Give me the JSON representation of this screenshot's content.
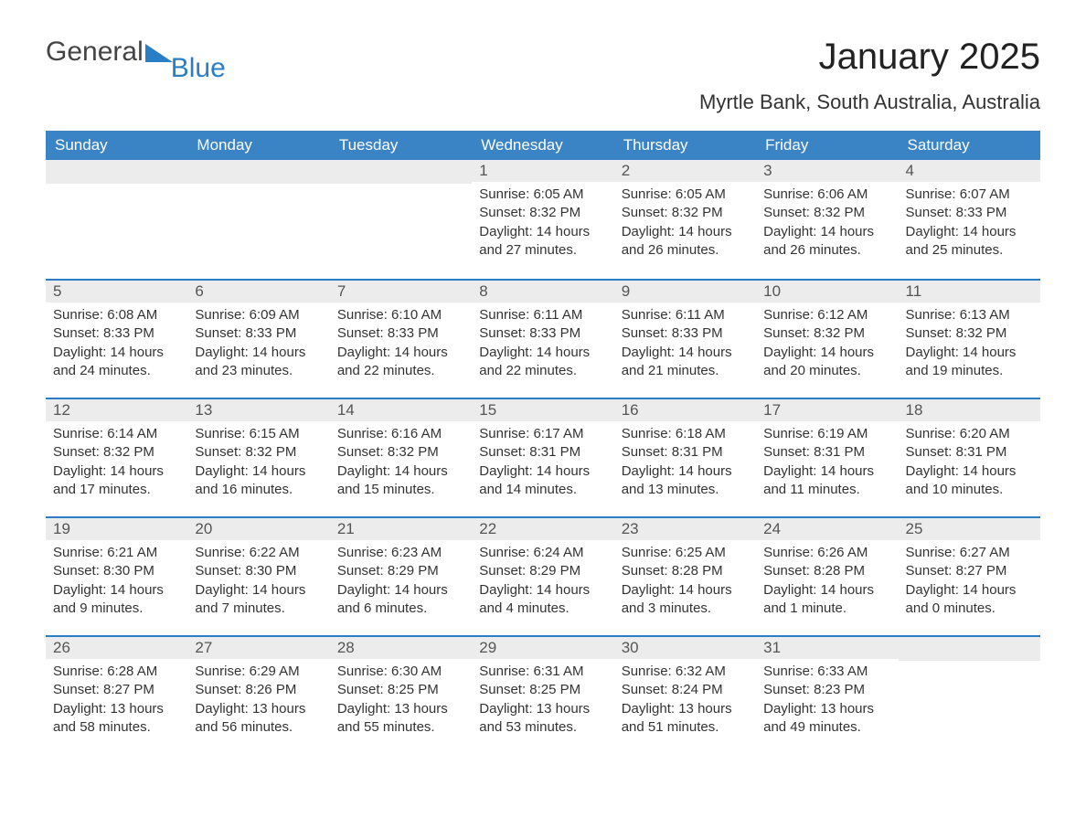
{
  "logo": {
    "word1": "General",
    "word2": "Blue",
    "mark_color": "#2a7ec6",
    "text_color_1": "#444444"
  },
  "title": "January 2025",
  "location": "Myrtle Bank, South Australia, Australia",
  "colors": {
    "header_bg": "#3a83c5",
    "header_text": "#ffffff",
    "daynum_bg": "#ececec",
    "week_divider": "#2a7ec6",
    "body_text": "#333333",
    "page_bg": "#ffffff"
  },
  "day_headers": [
    "Sunday",
    "Monday",
    "Tuesday",
    "Wednesday",
    "Thursday",
    "Friday",
    "Saturday"
  ],
  "weeks": [
    [
      null,
      null,
      null,
      {
        "n": "1",
        "sunrise": "Sunrise: 6:05 AM",
        "sunset": "Sunset: 8:32 PM",
        "dl1": "Daylight: 14 hours",
        "dl2": "and 27 minutes."
      },
      {
        "n": "2",
        "sunrise": "Sunrise: 6:05 AM",
        "sunset": "Sunset: 8:32 PM",
        "dl1": "Daylight: 14 hours",
        "dl2": "and 26 minutes."
      },
      {
        "n": "3",
        "sunrise": "Sunrise: 6:06 AM",
        "sunset": "Sunset: 8:32 PM",
        "dl1": "Daylight: 14 hours",
        "dl2": "and 26 minutes."
      },
      {
        "n": "4",
        "sunrise": "Sunrise: 6:07 AM",
        "sunset": "Sunset: 8:33 PM",
        "dl1": "Daylight: 14 hours",
        "dl2": "and 25 minutes."
      }
    ],
    [
      {
        "n": "5",
        "sunrise": "Sunrise: 6:08 AM",
        "sunset": "Sunset: 8:33 PM",
        "dl1": "Daylight: 14 hours",
        "dl2": "and 24 minutes."
      },
      {
        "n": "6",
        "sunrise": "Sunrise: 6:09 AM",
        "sunset": "Sunset: 8:33 PM",
        "dl1": "Daylight: 14 hours",
        "dl2": "and 23 minutes."
      },
      {
        "n": "7",
        "sunrise": "Sunrise: 6:10 AM",
        "sunset": "Sunset: 8:33 PM",
        "dl1": "Daylight: 14 hours",
        "dl2": "and 22 minutes."
      },
      {
        "n": "8",
        "sunrise": "Sunrise: 6:11 AM",
        "sunset": "Sunset: 8:33 PM",
        "dl1": "Daylight: 14 hours",
        "dl2": "and 22 minutes."
      },
      {
        "n": "9",
        "sunrise": "Sunrise: 6:11 AM",
        "sunset": "Sunset: 8:33 PM",
        "dl1": "Daylight: 14 hours",
        "dl2": "and 21 minutes."
      },
      {
        "n": "10",
        "sunrise": "Sunrise: 6:12 AM",
        "sunset": "Sunset: 8:32 PM",
        "dl1": "Daylight: 14 hours",
        "dl2": "and 20 minutes."
      },
      {
        "n": "11",
        "sunrise": "Sunrise: 6:13 AM",
        "sunset": "Sunset: 8:32 PM",
        "dl1": "Daylight: 14 hours",
        "dl2": "and 19 minutes."
      }
    ],
    [
      {
        "n": "12",
        "sunrise": "Sunrise: 6:14 AM",
        "sunset": "Sunset: 8:32 PM",
        "dl1": "Daylight: 14 hours",
        "dl2": "and 17 minutes."
      },
      {
        "n": "13",
        "sunrise": "Sunrise: 6:15 AM",
        "sunset": "Sunset: 8:32 PM",
        "dl1": "Daylight: 14 hours",
        "dl2": "and 16 minutes."
      },
      {
        "n": "14",
        "sunrise": "Sunrise: 6:16 AM",
        "sunset": "Sunset: 8:32 PM",
        "dl1": "Daylight: 14 hours",
        "dl2": "and 15 minutes."
      },
      {
        "n": "15",
        "sunrise": "Sunrise: 6:17 AM",
        "sunset": "Sunset: 8:31 PM",
        "dl1": "Daylight: 14 hours",
        "dl2": "and 14 minutes."
      },
      {
        "n": "16",
        "sunrise": "Sunrise: 6:18 AM",
        "sunset": "Sunset: 8:31 PM",
        "dl1": "Daylight: 14 hours",
        "dl2": "and 13 minutes."
      },
      {
        "n": "17",
        "sunrise": "Sunrise: 6:19 AM",
        "sunset": "Sunset: 8:31 PM",
        "dl1": "Daylight: 14 hours",
        "dl2": "and 11 minutes."
      },
      {
        "n": "18",
        "sunrise": "Sunrise: 6:20 AM",
        "sunset": "Sunset: 8:31 PM",
        "dl1": "Daylight: 14 hours",
        "dl2": "and 10 minutes."
      }
    ],
    [
      {
        "n": "19",
        "sunrise": "Sunrise: 6:21 AM",
        "sunset": "Sunset: 8:30 PM",
        "dl1": "Daylight: 14 hours",
        "dl2": "and 9 minutes."
      },
      {
        "n": "20",
        "sunrise": "Sunrise: 6:22 AM",
        "sunset": "Sunset: 8:30 PM",
        "dl1": "Daylight: 14 hours",
        "dl2": "and 7 minutes."
      },
      {
        "n": "21",
        "sunrise": "Sunrise: 6:23 AM",
        "sunset": "Sunset: 8:29 PM",
        "dl1": "Daylight: 14 hours",
        "dl2": "and 6 minutes."
      },
      {
        "n": "22",
        "sunrise": "Sunrise: 6:24 AM",
        "sunset": "Sunset: 8:29 PM",
        "dl1": "Daylight: 14 hours",
        "dl2": "and 4 minutes."
      },
      {
        "n": "23",
        "sunrise": "Sunrise: 6:25 AM",
        "sunset": "Sunset: 8:28 PM",
        "dl1": "Daylight: 14 hours",
        "dl2": "and 3 minutes."
      },
      {
        "n": "24",
        "sunrise": "Sunrise: 6:26 AM",
        "sunset": "Sunset: 8:28 PM",
        "dl1": "Daylight: 14 hours",
        "dl2": "and 1 minute."
      },
      {
        "n": "25",
        "sunrise": "Sunrise: 6:27 AM",
        "sunset": "Sunset: 8:27 PM",
        "dl1": "Daylight: 14 hours",
        "dl2": "and 0 minutes."
      }
    ],
    [
      {
        "n": "26",
        "sunrise": "Sunrise: 6:28 AM",
        "sunset": "Sunset: 8:27 PM",
        "dl1": "Daylight: 13 hours",
        "dl2": "and 58 minutes."
      },
      {
        "n": "27",
        "sunrise": "Sunrise: 6:29 AM",
        "sunset": "Sunset: 8:26 PM",
        "dl1": "Daylight: 13 hours",
        "dl2": "and 56 minutes."
      },
      {
        "n": "28",
        "sunrise": "Sunrise: 6:30 AM",
        "sunset": "Sunset: 8:25 PM",
        "dl1": "Daylight: 13 hours",
        "dl2": "and 55 minutes."
      },
      {
        "n": "29",
        "sunrise": "Sunrise: 6:31 AM",
        "sunset": "Sunset: 8:25 PM",
        "dl1": "Daylight: 13 hours",
        "dl2": "and 53 minutes."
      },
      {
        "n": "30",
        "sunrise": "Sunrise: 6:32 AM",
        "sunset": "Sunset: 8:24 PM",
        "dl1": "Daylight: 13 hours",
        "dl2": "and 51 minutes."
      },
      {
        "n": "31",
        "sunrise": "Sunrise: 6:33 AM",
        "sunset": "Sunset: 8:23 PM",
        "dl1": "Daylight: 13 hours",
        "dl2": "and 49 minutes."
      },
      null
    ]
  ]
}
